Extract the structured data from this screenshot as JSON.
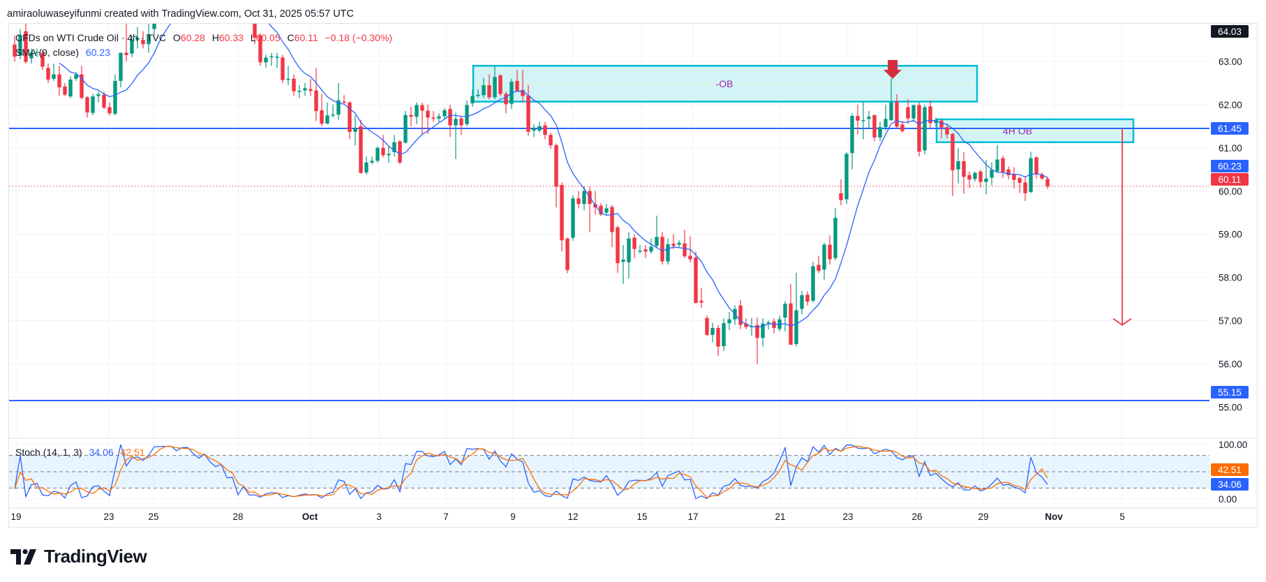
{
  "header": {
    "attribution": "amiraoluwaseyifunmi created with TradingView.com, Oct 31, 2025 05:57 UTC"
  },
  "legend": {
    "symbol": "CFDs on WTI Crude Oil · 4h · TVC",
    "open_label": "O",
    "open": "60.28",
    "high_label": "H",
    "high": "60.33",
    "low_label": "L",
    "low": "60.05",
    "close_label": "C",
    "close": "60.11",
    "change": "−0.18 (−0.30%)",
    "sma_label": "SMA (9, close)",
    "sma_value": "60.23",
    "stoch_label": "Stoch (14, 1, 3)",
    "stoch_k": "34.06",
    "stoch_d": "42.51"
  },
  "colors": {
    "up": "#089981",
    "down": "#f23645",
    "sma": "#2962ff",
    "level": "#2962ff",
    "stoch_k": "#2962ff",
    "stoch_d": "#ff6d00",
    "zone_border": "#00bcd4",
    "zone_fill": "#cdf3f6",
    "zone_text": "#9c27b0"
  },
  "logo": {
    "text": "TradingView"
  },
  "chart_data": {
    "type": "candlestick",
    "timeframe": "4h",
    "symbol": "CFDs on WTI Crude Oil",
    "x_ticks": [
      "19",
      "23",
      "25",
      "28",
      "Oct",
      "3",
      "7",
      "9",
      "12",
      "15",
      "17",
      "21",
      "23",
      "26",
      "29",
      "Nov",
      "5"
    ],
    "y_ticks": [
      "63.00",
      "62.00",
      "61.00",
      "60.00",
      "59.00",
      "58.00",
      "57.00",
      "56.00",
      "55.00"
    ],
    "price_tags": [
      {
        "value": "64.03",
        "color": "#131722"
      },
      {
        "value": "61.45",
        "color": "#2962ff"
      },
      {
        "value": "60.23",
        "color": "#2962ff"
      },
      {
        "value": "60.11",
        "color": "#f23645"
      },
      {
        "value": "55.15",
        "color": "#2962ff"
      }
    ],
    "levels": [
      61.45,
      55.15
    ],
    "last_price": 60.11,
    "zones": [
      {
        "label": "-OB",
        "top": 62.9,
        "bottom": 62.07
      },
      {
        "label": "4H OB",
        "top": 61.66,
        "bottom": 61.13
      }
    ],
    "projection_target": 56.9,
    "ohlc": [
      [
        63.39,
        63.6,
        63.0,
        63.11
      ],
      [
        63.14,
        63.75,
        63.05,
        63.6
      ],
      [
        63.7,
        63.9,
        62.95,
        62.99
      ],
      [
        63.07,
        63.3,
        62.95,
        63.2
      ],
      [
        63.2,
        63.3,
        63.1,
        63.22
      ],
      [
        63.2,
        63.25,
        62.8,
        62.88
      ],
      [
        62.85,
        62.95,
        62.5,
        62.58
      ],
      [
        62.6,
        62.95,
        62.55,
        62.7
      ],
      [
        62.7,
        62.9,
        62.2,
        62.4
      ],
      [
        62.42,
        62.5,
        62.2,
        62.23
      ],
      [
        62.19,
        62.65,
        62.15,
        62.58
      ],
      [
        62.6,
        62.75,
        62.55,
        62.7
      ],
      [
        62.7,
        62.9,
        62.12,
        62.16
      ],
      [
        62.17,
        62.2,
        61.7,
        61.82
      ],
      [
        61.81,
        62.25,
        61.75,
        62.19
      ],
      [
        62.2,
        62.3,
        62.05,
        62.24
      ],
      [
        62.23,
        62.3,
        61.9,
        61.93
      ],
      [
        61.94,
        62.05,
        61.75,
        61.8
      ],
      [
        61.79,
        62.7,
        61.75,
        62.55
      ],
      [
        62.55,
        63.2,
        62.4,
        63.2
      ],
      [
        63.2,
        64.1,
        63.0,
        63.15
      ],
      [
        63.18,
        63.6,
        63.1,
        63.5
      ],
      [
        63.5,
        63.8,
        63.3,
        63.55
      ],
      [
        63.5,
        63.7,
        63.3,
        63.4
      ],
      [
        63.4,
        63.9,
        63.2,
        63.62
      ],
      [
        63.75,
        64.1,
        63.6,
        64.0
      ],
      [
        64.0,
        64.4,
        63.9,
        64.3
      ],
      [
        64.3,
        64.7,
        64.2,
        64.6
      ],
      [
        64.6,
        65.0,
        64.4,
        64.9
      ],
      [
        64.9,
        65.2,
        64.6,
        64.8
      ],
      [
        64.8,
        65.3,
        64.7,
        65.1
      ],
      [
        65.1,
        65.4,
        64.9,
        65.2
      ],
      [
        65.2,
        65.3,
        64.8,
        64.9
      ],
      [
        64.9,
        65.1,
        64.6,
        64.8
      ],
      [
        64.8,
        65.2,
        64.7,
        65.0
      ],
      [
        65.0,
        65.1,
        64.6,
        64.7
      ],
      [
        64.7,
        64.9,
        64.4,
        64.5
      ],
      [
        64.5,
        64.8,
        64.3,
        64.6
      ],
      [
        64.6,
        64.7,
        64.2,
        64.3
      ],
      [
        64.3,
        64.6,
        64.2,
        64.5
      ],
      [
        64.5,
        64.6,
        64.1,
        64.2
      ],
      [
        64.2,
        64.5,
        64.1,
        64.4
      ],
      [
        64.4,
        64.5,
        64.0,
        64.1
      ],
      [
        64.1,
        64.2,
        63.4,
        63.55
      ],
      [
        63.6,
        63.65,
        62.9,
        62.98
      ],
      [
        62.98,
        63.15,
        62.85,
        63.09
      ],
      [
        63.1,
        63.2,
        62.9,
        63.12
      ],
      [
        63.1,
        63.2,
        62.85,
        63.11
      ],
      [
        63.09,
        63.15,
        62.5,
        62.57
      ],
      [
        62.58,
        62.9,
        62.45,
        62.6
      ],
      [
        62.6,
        62.7,
        62.2,
        62.31
      ],
      [
        62.3,
        62.45,
        62.15,
        62.32
      ],
      [
        62.33,
        62.5,
        62.2,
        62.38
      ],
      [
        62.36,
        62.6,
        62.2,
        62.32
      ],
      [
        62.33,
        62.85,
        61.62,
        61.85
      ],
      [
        61.87,
        62.25,
        61.5,
        61.56
      ],
      [
        61.56,
        62.05,
        61.55,
        61.75
      ],
      [
        61.77,
        62.0,
        61.7,
        61.77
      ],
      [
        61.77,
        62.5,
        61.65,
        62.1
      ],
      [
        62.07,
        62.22,
        62.0,
        62.05
      ],
      [
        62.05,
        62.08,
        61.2,
        61.37
      ],
      [
        61.37,
        61.75,
        61.05,
        61.45
      ],
      [
        61.5,
        61.65,
        60.4,
        60.42
      ],
      [
        60.43,
        60.8,
        60.38,
        60.66
      ],
      [
        60.66,
        60.8,
        60.62,
        60.7
      ],
      [
        60.7,
        61.03,
        60.65,
        61.0
      ],
      [
        61.0,
        61.3,
        60.78,
        60.83
      ],
      [
        60.83,
        61.05,
        60.65,
        60.86
      ],
      [
        60.9,
        61.3,
        60.8,
        61.13
      ],
      [
        61.15,
        61.18,
        60.62,
        60.66
      ],
      [
        61.12,
        61.85,
        61.1,
        61.76
      ],
      [
        61.76,
        61.95,
        61.5,
        61.72
      ],
      [
        61.72,
        62.05,
        61.55,
        61.99
      ],
      [
        61.99,
        62.05,
        61.3,
        61.86
      ],
      [
        61.86,
        62.0,
        61.32,
        61.7
      ],
      [
        61.7,
        61.85,
        61.6,
        61.68
      ],
      [
        61.68,
        61.8,
        61.6,
        61.73
      ],
      [
        61.73,
        61.92,
        61.65,
        61.87
      ],
      [
        61.9,
        62.0,
        61.25,
        61.52
      ],
      [
        61.52,
        61.82,
        60.74,
        61.67
      ],
      [
        61.68,
        61.72,
        61.3,
        61.52
      ],
      [
        61.55,
        62.1,
        61.5,
        61.99
      ],
      [
        62.03,
        62.35,
        61.95,
        62.2
      ],
      [
        62.2,
        62.35,
        62.15,
        62.23
      ],
      [
        62.22,
        62.62,
        62.15,
        62.45
      ],
      [
        62.45,
        62.7,
        62.12,
        62.17
      ],
      [
        62.17,
        62.9,
        62.12,
        62.64
      ],
      [
        62.68,
        62.7,
        62.2,
        62.25
      ],
      [
        62.25,
        62.3,
        61.8,
        62.01
      ],
      [
        62.02,
        62.6,
        61.9,
        62.53
      ],
      [
        62.55,
        62.8,
        62.3,
        62.32
      ],
      [
        62.34,
        62.8,
        62.05,
        62.2
      ],
      [
        62.21,
        62.45,
        61.28,
        61.37
      ],
      [
        61.4,
        61.55,
        61.25,
        61.45
      ],
      [
        61.4,
        61.6,
        61.35,
        61.5
      ],
      [
        61.52,
        61.6,
        61.2,
        61.3
      ],
      [
        61.3,
        61.35,
        60.98,
        61.06
      ],
      [
        61.06,
        61.1,
        59.62,
        60.1
      ],
      [
        60.14,
        60.2,
        58.6,
        58.86
      ],
      [
        58.9,
        58.92,
        58.1,
        58.17
      ],
      [
        58.92,
        59.9,
        58.85,
        59.83
      ],
      [
        59.83,
        60.0,
        59.6,
        59.7
      ],
      [
        59.7,
        60.1,
        59.55,
        60.0
      ],
      [
        60.0,
        60.1,
        59.05,
        59.7
      ],
      [
        59.7,
        60.0,
        59.45,
        59.62
      ],
      [
        59.66,
        59.72,
        59.42,
        59.46
      ],
      [
        59.5,
        59.7,
        59.45,
        59.6
      ],
      [
        59.63,
        59.68,
        58.7,
        59.05
      ],
      [
        59.16,
        59.2,
        58.1,
        58.33
      ],
      [
        58.36,
        58.75,
        57.85,
        58.41
      ],
      [
        58.35,
        59.05,
        57.98,
        58.9
      ],
      [
        58.92,
        59.0,
        58.45,
        58.66
      ],
      [
        58.62,
        58.75,
        58.55,
        58.62
      ],
      [
        58.65,
        58.75,
        58.45,
        58.6
      ],
      [
        58.6,
        58.9,
        58.55,
        58.71
      ],
      [
        58.73,
        59.43,
        58.68,
        58.94
      ],
      [
        58.94,
        59.05,
        58.3,
        58.37
      ],
      [
        58.37,
        58.9,
        58.3,
        58.77
      ],
      [
        58.78,
        59.0,
        58.65,
        58.73
      ],
      [
        58.76,
        58.86,
        58.7,
        58.8
      ],
      [
        58.79,
        59.1,
        58.45,
        58.49
      ],
      [
        58.5,
        58.95,
        58.35,
        58.42
      ],
      [
        58.46,
        58.6,
        57.4,
        57.41
      ],
      [
        57.46,
        57.75,
        57.3,
        57.42
      ],
      [
        57.06,
        57.12,
        56.65,
        56.67
      ],
      [
        56.67,
        56.95,
        56.5,
        56.83
      ],
      [
        56.83,
        56.9,
        56.18,
        56.4
      ],
      [
        56.41,
        57.05,
        56.3,
        56.94
      ],
      [
        56.94,
        57.2,
        56.78,
        57.03
      ],
      [
        57.03,
        57.35,
        56.9,
        57.27
      ],
      [
        57.35,
        57.48,
        56.8,
        56.9
      ],
      [
        56.93,
        57.05,
        56.8,
        56.85
      ],
      [
        56.85,
        57.06,
        56.65,
        56.87
      ],
      [
        56.9,
        57.07,
        55.99,
        56.6
      ],
      [
        56.6,
        57.05,
        56.4,
        56.93
      ],
      [
        56.96,
        57.0,
        56.8,
        56.96
      ],
      [
        56.98,
        57.05,
        56.7,
        56.83
      ],
      [
        56.81,
        57.11,
        56.75,
        57.03
      ],
      [
        57.07,
        57.45,
        56.75,
        57.39
      ],
      [
        57.4,
        57.85,
        56.45,
        56.44
      ],
      [
        56.46,
        58.11,
        56.4,
        57.24
      ],
      [
        57.27,
        57.68,
        57.15,
        57.59
      ],
      [
        57.6,
        57.68,
        57.35,
        57.44
      ],
      [
        57.46,
        58.36,
        57.42,
        58.26
      ],
      [
        58.29,
        58.5,
        58.1,
        58.15
      ],
      [
        58.18,
        58.8,
        57.95,
        58.76
      ],
      [
        58.76,
        58.97,
        58.3,
        58.42
      ],
      [
        58.45,
        59.6,
        58.4,
        59.38
      ],
      [
        59.95,
        60.27,
        59.67,
        59.79
      ],
      [
        59.81,
        60.9,
        59.7,
        60.86
      ],
      [
        60.88,
        61.8,
        60.5,
        61.74
      ],
      [
        61.74,
        62.0,
        61.3,
        61.63
      ],
      [
        61.64,
        62.07,
        61.2,
        61.64
      ],
      [
        61.67,
        61.85,
        61.45,
        61.72
      ],
      [
        61.76,
        61.76,
        61.15,
        61.24
      ],
      [
        61.24,
        61.6,
        61.15,
        61.48
      ],
      [
        61.48,
        62.0,
        61.4,
        61.67
      ],
      [
        61.64,
        62.6,
        61.62,
        62.05
      ],
      [
        62.07,
        62.24,
        61.45,
        61.49
      ],
      [
        61.54,
        61.62,
        61.35,
        61.39
      ],
      [
        61.94,
        62.13,
        61.55,
        61.68
      ],
      [
        61.68,
        62.0,
        61.6,
        61.99
      ],
      [
        61.99,
        62.05,
        60.8,
        60.91
      ],
      [
        60.94,
        62.0,
        60.85,
        61.94
      ],
      [
        61.96,
        62.1,
        61.45,
        61.57
      ],
      [
        61.58,
        61.7,
        61.5,
        61.65
      ],
      [
        61.63,
        61.65,
        61.22,
        61.47
      ],
      [
        61.48,
        61.55,
        61.22,
        61.31
      ],
      [
        61.32,
        61.35,
        59.88,
        60.48
      ],
      [
        60.5,
        60.99,
        60.18,
        60.69
      ],
      [
        60.69,
        60.9,
        59.94,
        60.33
      ],
      [
        60.37,
        60.45,
        60.07,
        60.27
      ],
      [
        60.28,
        60.45,
        60.22,
        60.42
      ],
      [
        60.45,
        60.5,
        60.08,
        60.21
      ],
      [
        60.21,
        60.72,
        59.92,
        60.29
      ],
      [
        60.31,
        60.67,
        60.13,
        60.49
      ],
      [
        60.46,
        61.06,
        60.42,
        60.73
      ],
      [
        60.76,
        60.82,
        60.3,
        60.44
      ],
      [
        60.5,
        60.57,
        60.27,
        60.37
      ],
      [
        60.39,
        60.55,
        60.06,
        60.26
      ],
      [
        60.3,
        60.33,
        59.95,
        60.19
      ],
      [
        60.2,
        60.35,
        59.77,
        59.95
      ],
      [
        59.98,
        60.91,
        59.95,
        60.76
      ],
      [
        60.78,
        60.8,
        60.29,
        60.39
      ],
      [
        60.38,
        60.43,
        60.25,
        60.29
      ],
      [
        60.28,
        60.33,
        60.05,
        60.11
      ]
    ],
    "indicators": [
      {
        "name": "SMA (9, close)",
        "period": 9
      },
      {
        "name": "Stoch (14, 1, 3)",
        "k_period": 14,
        "k_smooth": 1,
        "d_period": 3,
        "bands": [
          80,
          50,
          20
        ],
        "ylim": [
          0,
          100
        ],
        "ticks": [
          "100.00",
          "0.00"
        ],
        "tags": [
          {
            "value": "42.51",
            "color": "#ff6d00"
          },
          {
            "value": "34.06",
            "color": "#2962ff"
          }
        ]
      }
    ],
    "grid": true
  }
}
